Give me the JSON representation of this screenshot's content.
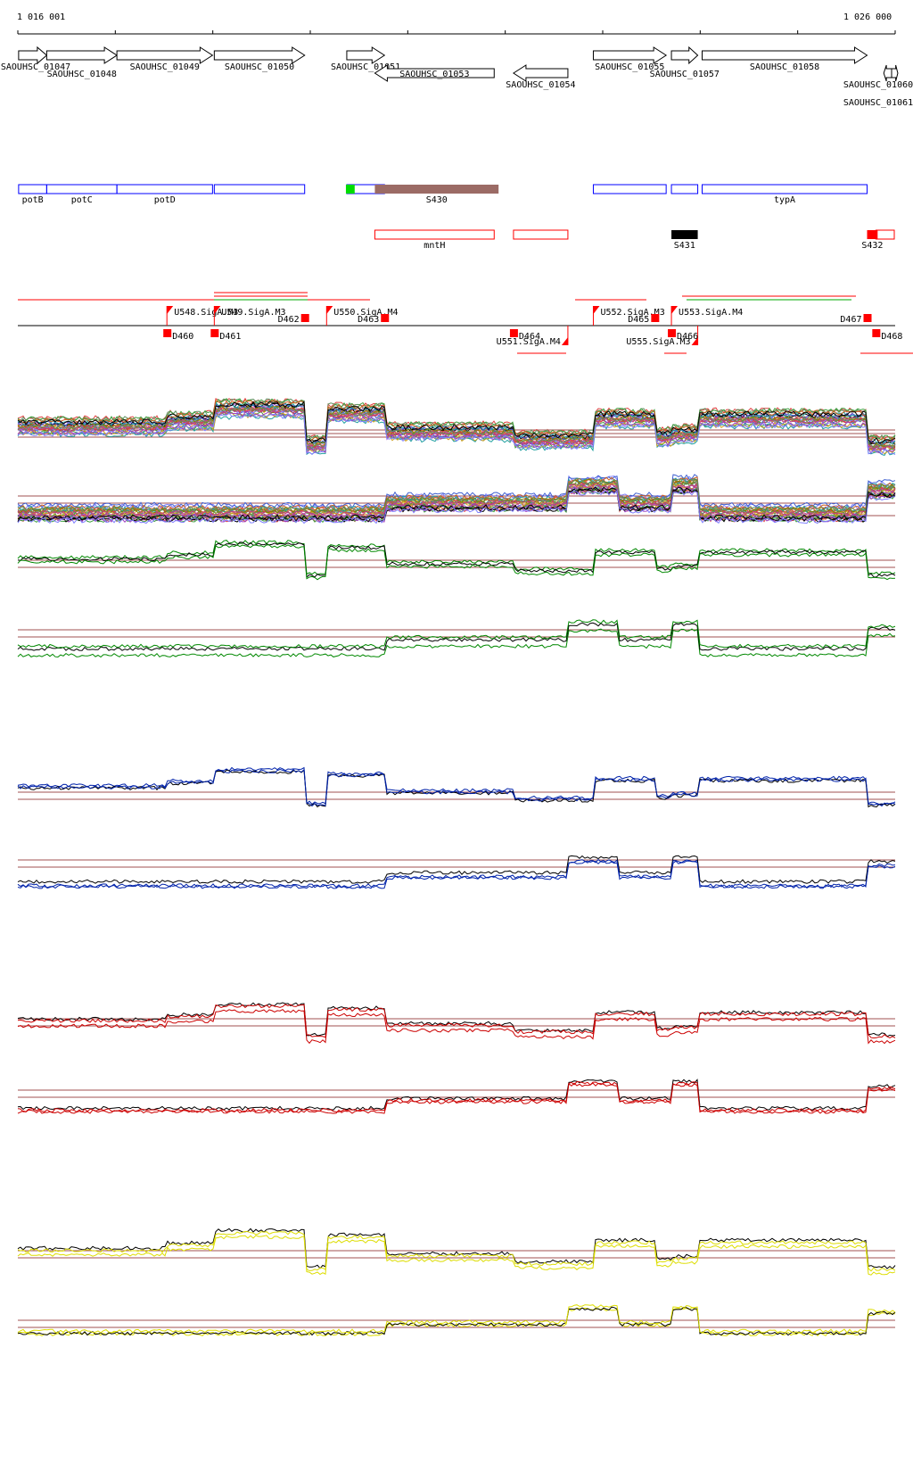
{
  "coords": {
    "start_label": "1 016 001",
    "end_label": "1 026 000",
    "range": [
      1016001,
      1026000
    ]
  },
  "colors": {
    "annotation_outline": "#0000ff",
    "srna_fill": "#9b6b65",
    "srna_alt_fill": "#000000",
    "cds_antisense_outline": "#ff0000",
    "marker_fill": "#ff0000",
    "green_channel": "#008800",
    "blue_channel": "#0022aa",
    "red_channel": "#cc0000",
    "yellow_channel": "#dddd00",
    "threshold_line": "#a05050",
    "small_feature_green": "#00dd00"
  },
  "genes": [
    {
      "label": "SAOUHSC_01047",
      "start": 1016010,
      "end": 1016330,
      "strand": "+"
    },
    {
      "label": "SAOUHSC_01048",
      "start": 1016330,
      "end": 1017130,
      "strand": "+"
    },
    {
      "label": "SAOUHSC_01049",
      "start": 1017130,
      "end": 1018220,
      "strand": "+"
    },
    {
      "label": "SAOUHSC_01050",
      "start": 1018240,
      "end": 1019270,
      "strand": "+"
    },
    {
      "label": "SAOUHSC_01051",
      "start": 1019750,
      "end": 1020180,
      "strand": "+"
    },
    {
      "label": "SAOUHSC_01053",
      "start": 1020070,
      "end": 1021430,
      "strand": "-"
    },
    {
      "label": "SAOUHSC_01054",
      "start": 1021650,
      "end": 1022270,
      "strand": "-"
    },
    {
      "label": "SAOUHSC_01055",
      "start": 1022560,
      "end": 1023390,
      "strand": "+"
    },
    {
      "label": "SAOUHSC_01057",
      "start": 1023450,
      "end": 1023750,
      "strand": "+"
    },
    {
      "label": "SAOUHSC_01058",
      "start": 1023800,
      "end": 1025680,
      "strand": "+"
    },
    {
      "label": "SAOUHSC_01060",
      "start": 1025870,
      "end": 1026060,
      "strand": "-"
    },
    {
      "label": "SAOUHSC_01061",
      "start": 1026030,
      "end": 1026200,
      "strand": "-"
    }
  ],
  "annotations": [
    {
      "label": "potB",
      "start": 1016010,
      "end": 1016330
    },
    {
      "label": "potC",
      "start": 1016330,
      "end": 1017130
    },
    {
      "label": "potD",
      "start": 1017130,
      "end": 1018220
    },
    {
      "label": "",
      "start": 1018240,
      "end": 1019270
    },
    {
      "label": "",
      "start": 1019750,
      "end": 1020180
    },
    {
      "label": "",
      "start": 1022560,
      "end": 1023390
    },
    {
      "label": "",
      "start": 1023450,
      "end": 1023750
    },
    {
      "label": "typA",
      "start": 1023800,
      "end": 1025680
    }
  ],
  "srna": [
    {
      "label": "S430",
      "start": 1020070,
      "end": 1021480,
      "kind": "main"
    },
    {
      "label": "",
      "start": 1019740,
      "end": 1019840,
      "kind": "green"
    },
    {
      "label": "S431",
      "start": 1023450,
      "end": 1023750,
      "kind": "alt"
    },
    {
      "label": "S432",
      "start": 1025680,
      "end": 1025800,
      "kind": "marker"
    }
  ],
  "antisense": [
    {
      "label": "mntH",
      "start": 1020070,
      "end": 1021430
    },
    {
      "label": "",
      "start": 1021650,
      "end": 1022270
    },
    {
      "label": "",
      "start": 1025780,
      "end": 1026000
    }
  ],
  "upshifts": [
    {
      "label": "U548.SigA.M3",
      "pos": 1017700,
      "strand": "+"
    },
    {
      "label": "U549.SigA.M3",
      "pos": 1018240,
      "strand": "+"
    },
    {
      "label": "U550.SigA.M4",
      "pos": 1019520,
      "strand": "+"
    },
    {
      "label": "U552.SigA.M3",
      "pos": 1022560,
      "strand": "+"
    },
    {
      "label": "U553.SigA.M4",
      "pos": 1023450,
      "strand": "+"
    },
    {
      "label": "U551.SigA.M4",
      "pos": 1022270,
      "strand": "-"
    },
    {
      "label": "U555.SigA.M3",
      "pos": 1023750,
      "strand": "-"
    }
  ],
  "downshifts": [
    {
      "label": "D460",
      "pos": 1017700
    },
    {
      "label": "D461",
      "pos": 1018240
    },
    {
      "label": "D462",
      "pos": 1019270
    },
    {
      "label": "D463",
      "pos": 1020180
    },
    {
      "label": "D464",
      "pos": 1021650
    },
    {
      "label": "D465",
      "pos": 1023260
    },
    {
      "label": "D466",
      "pos": 1023450
    },
    {
      "label": "D467",
      "pos": 1025680
    },
    {
      "label": "D468",
      "pos": 1025780
    }
  ]
}
